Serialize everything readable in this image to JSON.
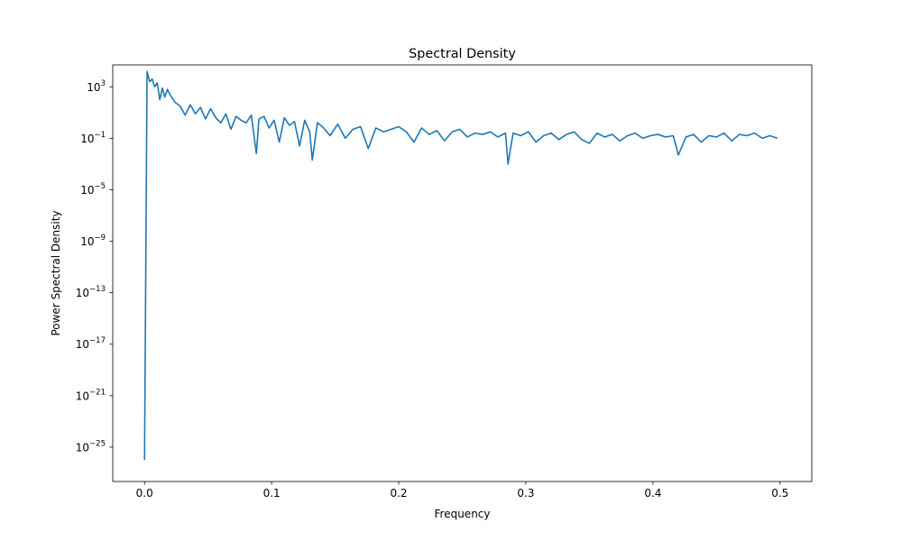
{
  "chart_data": {
    "type": "line",
    "title": "Spectral Density",
    "xlabel": "Frequency",
    "ylabel": "Power Spectral Density",
    "xlim": [
      -0.025,
      0.525
    ],
    "ylim_exp": [
      -27.67,
      4.7
    ],
    "yscale": "log",
    "grid": false,
    "x_ticks": [
      0.0,
      0.1,
      0.2,
      0.3,
      0.4,
      0.5
    ],
    "x_tick_labels": [
      "0.0",
      "0.1",
      "0.2",
      "0.3",
      "0.4",
      "0.5"
    ],
    "y_tick_exponents": [
      3,
      -1,
      -5,
      -9,
      -13,
      -17,
      -21,
      -25
    ],
    "y_tick_labels": [
      {
        "base": "10",
        "exp": "3"
      },
      {
        "base": "10",
        "exp": "−1"
      },
      {
        "base": "10",
        "exp": "−5"
      },
      {
        "base": "10",
        "exp": "−9"
      },
      {
        "base": "10",
        "exp": "−13"
      },
      {
        "base": "10",
        "exp": "−17"
      },
      {
        "base": "10",
        "exp": "−21"
      },
      {
        "base": "10",
        "exp": "−25"
      }
    ],
    "series": [
      {
        "color": "#1f77b4",
        "x": [
          0.0,
          0.002,
          0.004,
          0.006,
          0.008,
          0.01,
          0.012,
          0.014,
          0.016,
          0.018,
          0.02,
          0.024,
          0.028,
          0.032,
          0.036,
          0.04,
          0.044,
          0.048,
          0.052,
          0.056,
          0.06,
          0.064,
          0.068,
          0.072,
          0.076,
          0.08,
          0.084,
          0.088,
          0.09,
          0.094,
          0.098,
          0.102,
          0.106,
          0.11,
          0.114,
          0.118,
          0.122,
          0.126,
          0.13,
          0.132,
          0.136,
          0.14,
          0.146,
          0.152,
          0.158,
          0.164,
          0.17,
          0.176,
          0.182,
          0.188,
          0.194,
          0.2,
          0.206,
          0.212,
          0.218,
          0.224,
          0.23,
          0.236,
          0.242,
          0.248,
          0.254,
          0.26,
          0.266,
          0.272,
          0.278,
          0.284,
          0.286,
          0.29,
          0.296,
          0.302,
          0.308,
          0.314,
          0.32,
          0.326,
          0.332,
          0.338,
          0.344,
          0.35,
          0.356,
          0.362,
          0.368,
          0.374,
          0.38,
          0.386,
          0.392,
          0.398,
          0.404,
          0.41,
          0.416,
          0.42,
          0.426,
          0.432,
          0.438,
          0.444,
          0.45,
          0.456,
          0.462,
          0.468,
          0.474,
          0.48,
          0.486,
          0.492,
          0.498
        ],
        "y_exp": [
          -26.0,
          4.2,
          3.4,
          3.6,
          3.0,
          3.3,
          2.0,
          2.9,
          2.2,
          2.8,
          2.4,
          1.8,
          1.5,
          0.8,
          1.6,
          0.9,
          1.4,
          0.5,
          1.3,
          0.6,
          0.2,
          0.9,
          -0.3,
          0.7,
          0.4,
          0.2,
          0.8,
          -2.2,
          0.5,
          0.7,
          -0.2,
          0.4,
          -1.3,
          0.6,
          0.0,
          0.3,
          -1.6,
          0.4,
          -0.5,
          -2.7,
          0.2,
          -0.1,
          -0.8,
          0.1,
          -1.0,
          -0.3,
          -0.1,
          -1.8,
          -0.2,
          -0.5,
          -0.3,
          -0.1,
          -0.5,
          -1.3,
          -0.2,
          -0.7,
          -0.4,
          -1.2,
          -0.5,
          -0.3,
          -0.9,
          -0.6,
          -0.7,
          -0.5,
          -0.9,
          -0.6,
          -3.0,
          -0.6,
          -0.8,
          -0.5,
          -1.3,
          -0.8,
          -0.6,
          -1.1,
          -0.7,
          -0.5,
          -1.1,
          -1.4,
          -0.6,
          -0.9,
          -0.7,
          -1.2,
          -0.8,
          -0.6,
          -1.0,
          -0.8,
          -0.7,
          -0.9,
          -0.8,
          -2.3,
          -0.9,
          -0.7,
          -1.3,
          -0.8,
          -0.9,
          -0.6,
          -1.2,
          -0.7,
          -0.8,
          -0.6,
          -1.0,
          -0.8,
          -1.0
        ]
      }
    ]
  }
}
